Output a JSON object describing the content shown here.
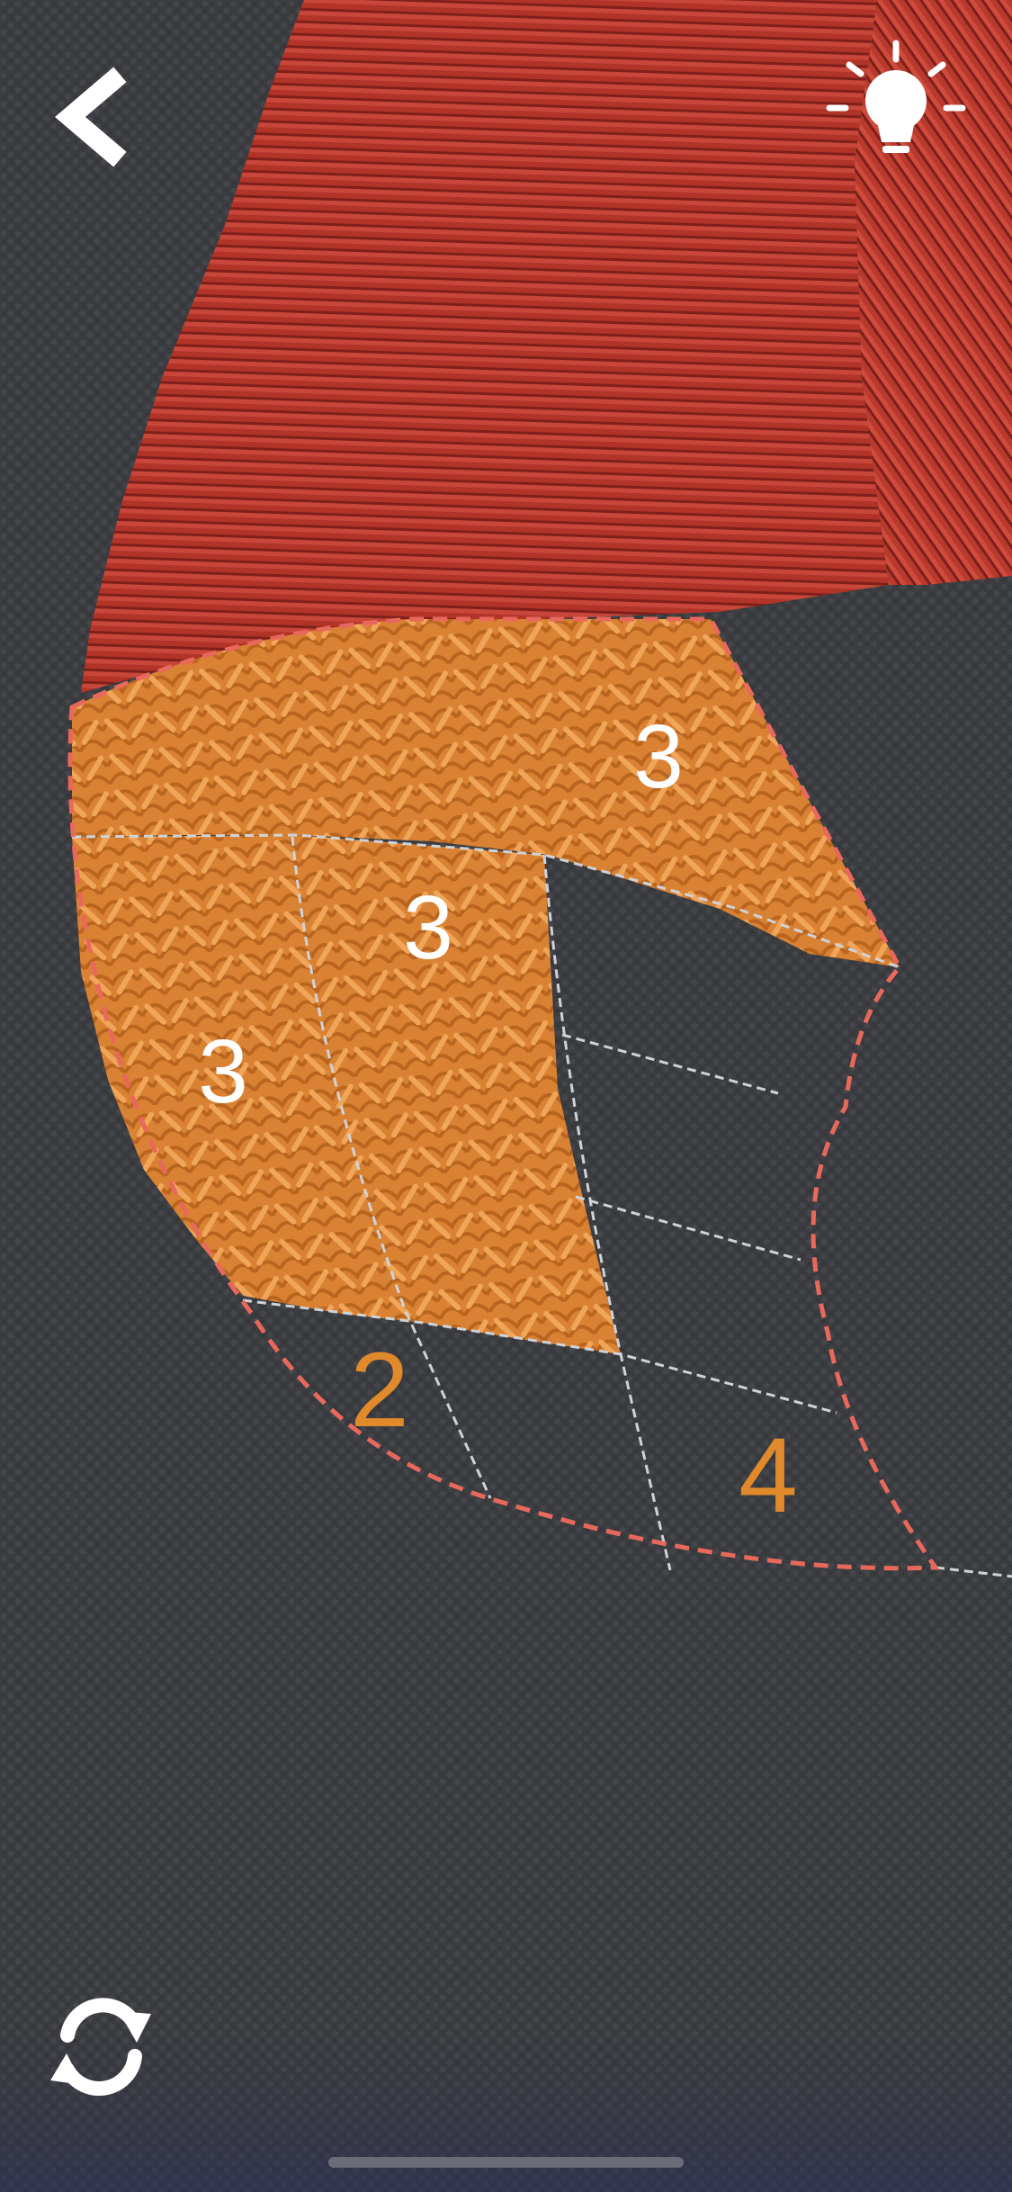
{
  "colors": {
    "background": "#3a3b3f",
    "red_thread": "#b8372c",
    "orange_thread": "#e08a38",
    "outline_dash": "#e8695c",
    "grid_line": "#cfd3d8",
    "clue_on_fill": "#ffffff",
    "clue_empty": "#e08a2c",
    "icon": "#ffffff"
  },
  "icons": {
    "back": "chevron-left-icon",
    "hint": "lightbulb-icon",
    "restart": "refresh-icon"
  },
  "puzzle": {
    "clues": [
      {
        "value": "3",
        "state": "filled"
      },
      {
        "value": "3",
        "state": "filled"
      },
      {
        "value": "3",
        "state": "filled"
      },
      {
        "value": "2",
        "state": "empty"
      },
      {
        "value": "4",
        "state": "empty"
      }
    ]
  }
}
